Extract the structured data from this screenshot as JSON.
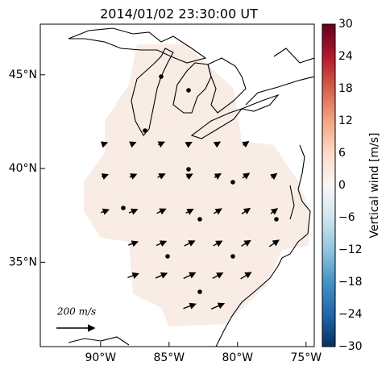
{
  "title": "2014/01/02 23:30:00 UT",
  "map": {
    "lonlim": [
      -94.4,
      -74.4
    ],
    "latlim": [
      30.5,
      47.7
    ],
    "lon_ticks": [
      {
        "value": -90,
        "label": "90°W"
      },
      {
        "value": -85,
        "label": "85°W"
      },
      {
        "value": -80,
        "label": "80°W"
      },
      {
        "value": -75,
        "label": "75°W"
      }
    ],
    "lat_ticks": [
      {
        "value": 35,
        "label": "35°N"
      },
      {
        "value": 40,
        "label": "40°N"
      },
      {
        "value": 45,
        "label": "45°N"
      }
    ],
    "scale_label": "200 m/s"
  },
  "colorbar": {
    "label": "Vertical wind [m/s]",
    "lim": [
      -30,
      30
    ],
    "ticks": [
      {
        "value": -30,
        "label": "−30"
      },
      {
        "value": -24,
        "label": "−24"
      },
      {
        "value": -18,
        "label": "−18"
      },
      {
        "value": -12,
        "label": "−12"
      },
      {
        "value": -6,
        "label": "−6"
      },
      0,
      6,
      12,
      18,
      24,
      30
    ]
  }
}
